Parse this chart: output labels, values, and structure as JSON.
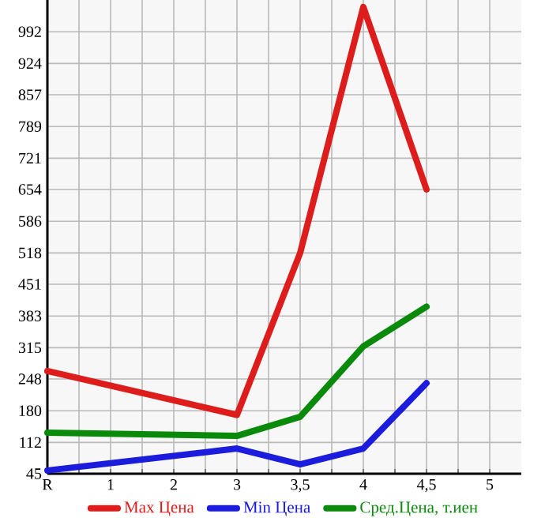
{
  "chart_data": {
    "type": "line",
    "categories": [
      "R",
      "1",
      "2",
      "3",
      "3,5",
      "4",
      "4,5",
      "5"
    ],
    "series": [
      {
        "name": "Max Цена",
        "color": "#dd1c1c",
        "values": [
          265,
          null,
          null,
          171,
          518,
          1045,
          654,
          null
        ]
      },
      {
        "name": "Min Цена",
        "color": "#1c1cdd",
        "values": [
          52,
          null,
          null,
          99,
          65,
          99,
          239,
          null
        ]
      },
      {
        "name": "Сред.Цена, т.иен",
        "color": "#0a8a0a",
        "values": [
          133,
          null,
          null,
          126,
          167,
          318,
          403,
          null
        ]
      }
    ],
    "ylim": [
      45,
      1060
    ],
    "yticks": [
      45,
      112,
      180,
      248,
      315,
      383,
      451,
      518,
      586,
      654,
      721,
      789,
      857,
      924,
      992
    ],
    "grid": true,
    "legend": "bottom",
    "marker": "none",
    "line_style": "solid"
  }
}
